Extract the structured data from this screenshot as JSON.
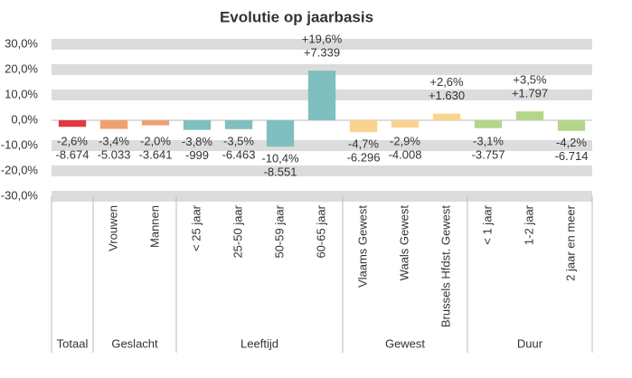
{
  "chart_data": {
    "type": "bar",
    "title": "Evolutie op jaarbasis",
    "categories": [
      "Totaal",
      "Vrouwen",
      "Mannen",
      "< 25 jaar",
      "25-50 jaar",
      "50-59 jaar",
      "60-65 jaar",
      "Vlaams Gewest",
      "Waals Gewest",
      "Brussels Hfdst. Gewest",
      "< 1 jaar",
      "1-2 jaar",
      "2 jaar en meer"
    ],
    "groups": [
      {
        "name": "Totaal",
        "size": 1
      },
      {
        "name": "Geslacht",
        "size": 2
      },
      {
        "name": "Leeftijd",
        "size": 4
      },
      {
        "name": "Gewest",
        "size": 3
      },
      {
        "name": "Duur",
        "size": 3
      }
    ],
    "values": [
      -2.6,
      -3.4,
      -2.0,
      -3.8,
      -3.5,
      -10.4,
      19.6,
      -4.7,
      -2.9,
      2.6,
      -3.1,
      3.5,
      -4.2
    ],
    "value_labels": [
      "-2,6%",
      "-3,4%",
      "-2,0%",
      "-3,8%",
      "-3,5%",
      "-10,4%",
      "+19,6%",
      "-4,7%",
      "-2,9%",
      "+2,6%",
      "-3,1%",
      "+3,5%",
      "-4,2%"
    ],
    "count_labels": [
      "-8.674",
      "-5.033",
      "-3.641",
      "-999",
      "-6.463",
      "-8.551",
      "+7.339",
      "-6.296",
      "-4.008",
      "+1.630",
      "-3.757",
      "+1.797",
      "-6.714"
    ],
    "colors": [
      "#e0393e",
      "#f0a070",
      "#f0a070",
      "#7fbfbf",
      "#7fbfbf",
      "#7fbfbf",
      "#7fbfbf",
      "#fbd38f",
      "#fbd38f",
      "#fbd38f",
      "#b3d68a",
      "#b3d68a",
      "#b3d68a"
    ],
    "ylim": [
      -30,
      30
    ],
    "yticks": [
      {
        "value": -30,
        "label": "-30,0%"
      },
      {
        "value": -20,
        "label": "-20,0%"
      },
      {
        "value": -10,
        "label": "-10,0%"
      },
      {
        "value": 0,
        "label": "0,0%"
      },
      {
        "value": 10,
        "label": "10,0%"
      },
      {
        "value": 20,
        "label": "20,0%"
      },
      {
        "value": 30,
        "label": "30,0%"
      }
    ],
    "grid": true
  }
}
